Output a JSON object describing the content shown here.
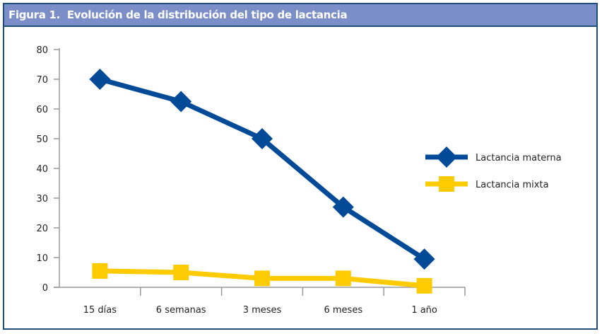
{
  "figure": {
    "label": "Figura 1.",
    "title": "Evolución de la distribución del tipo de lactancia"
  },
  "colors": {
    "header_bg": "#7c8ec8",
    "border": "#1d4f7a",
    "materna": "#004a97",
    "mixta": "#fdcb00",
    "axis": "#999999"
  },
  "chart_data": {
    "type": "line",
    "title": "Evolución de la distribución del tipo de lactancia",
    "xlabel": "",
    "ylabel": "",
    "categories": [
      "15 días",
      "6 semanas",
      "3 meses",
      "6 meses",
      "1 año"
    ],
    "ylim": [
      0,
      80
    ],
    "yticks": [
      0,
      10,
      20,
      30,
      40,
      50,
      60,
      70,
      80
    ],
    "grid": false,
    "legend_position": "right",
    "series": [
      {
        "name": "Lactancia materna",
        "marker": "diamond",
        "color": "#004a97",
        "values": [
          70,
          62.5,
          50,
          27,
          9.5
        ]
      },
      {
        "name": "Lactancia mixta",
        "marker": "square",
        "color": "#fdcb00",
        "values": [
          5.5,
          5,
          3,
          3,
          0.5
        ]
      }
    ]
  },
  "legend": {
    "items": [
      {
        "label": "Lactancia materna"
      },
      {
        "label": "Lactancia mixta"
      }
    ]
  },
  "axis": {
    "y_labels": [
      "0",
      "10",
      "20",
      "30",
      "40",
      "50",
      "60",
      "70",
      "80"
    ],
    "x_labels": [
      "15 días",
      "6 semanas",
      "3 meses",
      "6 meses",
      "1 año"
    ]
  }
}
